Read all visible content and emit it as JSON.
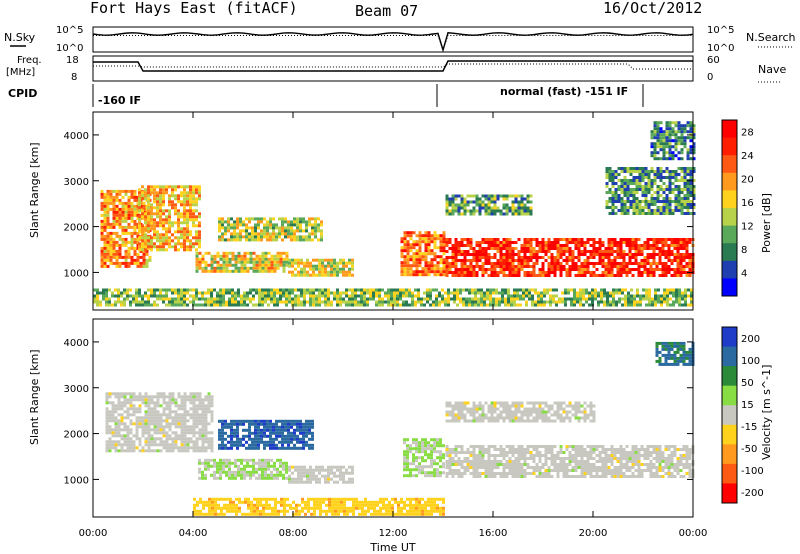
{
  "header": {
    "station": "Fort Hays East (fitACF)",
    "beam": "Beam 07",
    "date": "16/Oct/2012"
  },
  "panels": {
    "nsky": {
      "label": "N.Sky",
      "ticks": [
        "10^5",
        "10^0"
      ]
    },
    "nsearch": {
      "label": "N.Search",
      "ticks": [
        "10^5",
        "10^0"
      ]
    },
    "freq": {
      "label_top": "Freq.",
      "label_bottom": "[MHz]",
      "ticks": [
        "18",
        "8"
      ]
    },
    "nave": {
      "label": "Nave",
      "ticks": [
        "60",
        "0"
      ]
    },
    "cpid": {
      "label": "CPID",
      "segments": [
        "-160 IF",
        "normal (fast) -151 IF"
      ]
    }
  },
  "chart_data": [
    {
      "type": "heatmap",
      "title": "",
      "xlabel": "Time UT",
      "ylabel": "Slant Range [km]",
      "xticks": [
        "00:00",
        "04:00",
        "08:00",
        "12:00",
        "16:00",
        "20:00",
        "00:00"
      ],
      "yticks": [
        "1000",
        "2000",
        "3000",
        "4000"
      ],
      "xlim_hours": [
        0,
        24
      ],
      "ylim_km": [
        180,
        4500
      ],
      "colorbar": {
        "label": "Power [dB]",
        "ticks": [
          "4",
          "8",
          "12",
          "16",
          "20",
          "24",
          "28"
        ],
        "range": [
          0,
          30
        ],
        "colors": [
          "#0000ff",
          "#1f3fb0",
          "#2a7a52",
          "#5aa85a",
          "#b8d24a",
          "#ffd21e",
          "#ff9a1e",
          "#ff5a14",
          "#ff1e00",
          "#ff0000"
        ]
      },
      "regions": [
        {
          "t0": 0.3,
          "t1": 2.3,
          "r0": 1100,
          "r1": 2800,
          "v": 20
        },
        {
          "t0": 1.8,
          "t1": 4.3,
          "r0": 1500,
          "r1": 2900,
          "v": 18
        },
        {
          "t0": 5.0,
          "t1": 9.2,
          "r0": 1700,
          "r1": 2200,
          "v": 14
        },
        {
          "t0": 4.1,
          "t1": 7.8,
          "r0": 1000,
          "r1": 1450,
          "v": 16
        },
        {
          "t0": 7.8,
          "t1": 10.4,
          "r0": 950,
          "r1": 1300,
          "v": 15
        },
        {
          "t0": 12.3,
          "t1": 14.0,
          "r0": 950,
          "r1": 1900,
          "v": 22
        },
        {
          "t0": 14.1,
          "t1": 24.0,
          "r0": 950,
          "r1": 1750,
          "v": 26
        },
        {
          "t0": 14.1,
          "t1": 17.5,
          "r0": 2300,
          "r1": 2700,
          "v": 10
        },
        {
          "t0": 20.5,
          "t1": 24.0,
          "r0": 2300,
          "r1": 3300,
          "v": 9
        },
        {
          "t0": 22.3,
          "t1": 24.0,
          "r0": 3500,
          "r1": 4300,
          "v": 8
        },
        {
          "t0": 0.0,
          "t1": 24.0,
          "r0": 300,
          "r1": 650,
          "v": 12
        }
      ]
    },
    {
      "type": "heatmap",
      "title": "",
      "xlabel": "Time UT",
      "ylabel": "Slant Range [km]",
      "xticks": [
        "00:00",
        "04:00",
        "08:00",
        "12:00",
        "16:00",
        "20:00",
        "00:00"
      ],
      "yticks": [
        "1000",
        "2000",
        "3000",
        "4000"
      ],
      "xlim_hours": [
        0,
        24
      ],
      "ylim_km": [
        180,
        4500
      ],
      "colorbar": {
        "label": "Velocity [m s^-1]",
        "ticks": [
          "200",
          "100",
          "50",
          "15",
          "-15",
          "-50",
          "-100",
          "-200"
        ],
        "range": [
          -250,
          250
        ],
        "colors": [
          "#1e3cc8",
          "#2a6aa0",
          "#2a8a3a",
          "#88dd44",
          "#c8c8c0",
          "#ffd21e",
          "#ff9a1e",
          "#ff5a14",
          "#ff0000"
        ]
      },
      "regions": [
        {
          "t0": 0.5,
          "t1": 4.8,
          "r0": 1600,
          "r1": 2900,
          "v": 0
        },
        {
          "t0": 5.0,
          "t1": 8.8,
          "r0": 1700,
          "r1": 2300,
          "v": 180
        },
        {
          "t0": 4.2,
          "t1": 7.8,
          "r0": 1050,
          "r1": 1450,
          "v": 30
        },
        {
          "t0": 7.8,
          "t1": 10.4,
          "r0": 950,
          "r1": 1300,
          "v": 0
        },
        {
          "t0": 12.4,
          "t1": 14.0,
          "r0": 1050,
          "r1": 1900,
          "v": 30
        },
        {
          "t0": 14.1,
          "t1": 24.0,
          "r0": 1050,
          "r1": 1750,
          "v": 0
        },
        {
          "t0": 14.1,
          "t1": 20.0,
          "r0": 2300,
          "r1": 2700,
          "v": 0
        },
        {
          "t0": 22.5,
          "t1": 24.0,
          "r0": 3500,
          "r1": 4000,
          "v": 150
        },
        {
          "t0": 4.0,
          "t1": 14.0,
          "r0": 250,
          "r1": 600,
          "v": -60
        }
      ]
    }
  ]
}
